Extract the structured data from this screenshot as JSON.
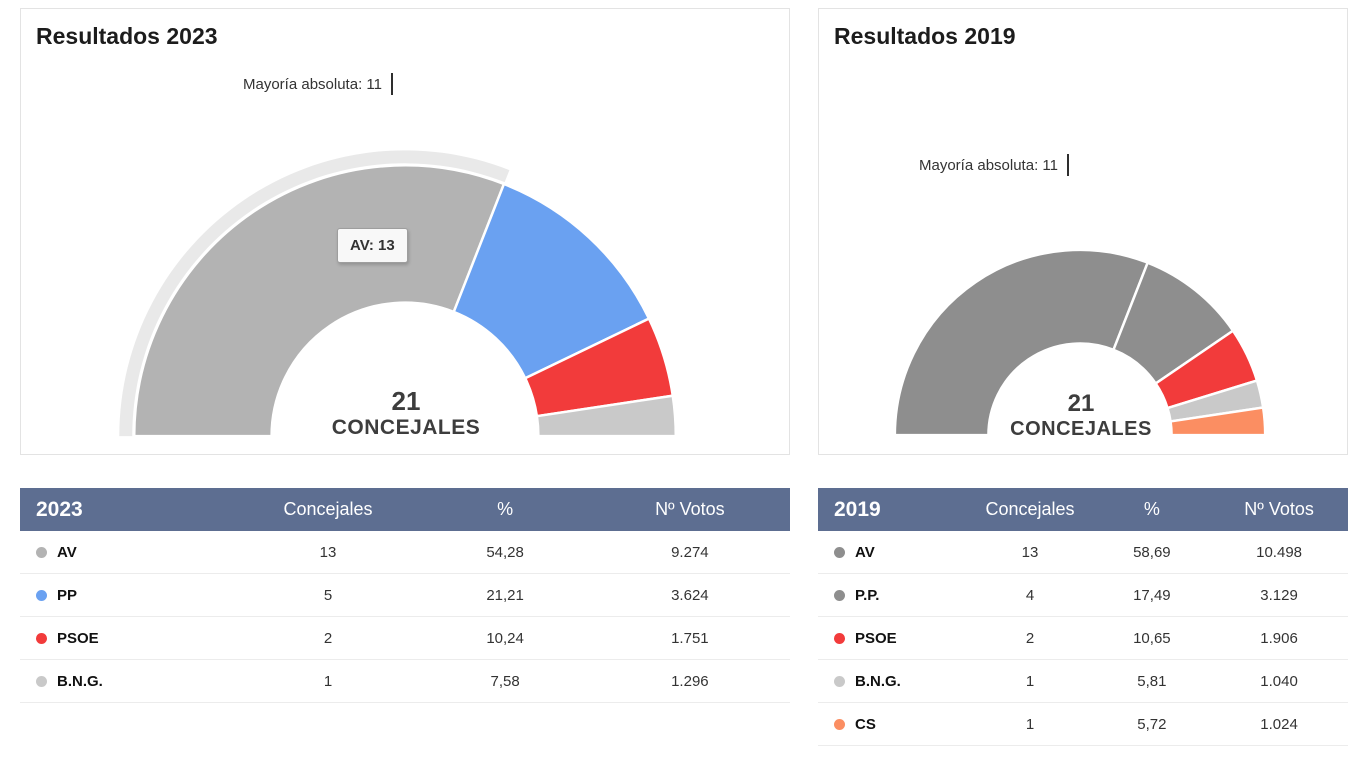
{
  "panels": [
    {
      "title": "Resultados 2023",
      "majority_label": "Mayoría absoluta: 11",
      "tooltip": "AV: 13",
      "center_value": "21",
      "center_label": "CONCEJALES",
      "table": {
        "year": "2023",
        "col_seats": "Concejales",
        "col_pct": "%",
        "col_votes": "Nº Votos",
        "rows": [
          {
            "party": "AV",
            "color": "#b3b3b3",
            "seats": "13",
            "pct": "54,28",
            "votes": "9.274"
          },
          {
            "party": "PP",
            "color": "#6aa1f1",
            "seats": "5",
            "pct": "21,21",
            "votes": "3.624"
          },
          {
            "party": "PSOE",
            "color": "#f23b3b",
            "seats": "2",
            "pct": "10,24",
            "votes": "1.751"
          },
          {
            "party": "B.N.G.",
            "color": "#c9c9c9",
            "seats": "1",
            "pct": "7,58",
            "votes": "1.296"
          }
        ]
      }
    },
    {
      "title": "Resultados 2019",
      "majority_label": "Mayoría absoluta: 11",
      "center_value": "21",
      "center_label": "CONCEJALES",
      "table": {
        "year": "2019",
        "col_seats": "Concejales",
        "col_pct": "%",
        "col_votes": "Nº Votos",
        "rows": [
          {
            "party": "AV",
            "color": "#8e8e8e",
            "seats": "13",
            "pct": "58,69",
            "votes": "10.498"
          },
          {
            "party": "P.P.",
            "color": "#8e8e8e",
            "seats": "4",
            "pct": "17,49",
            "votes": "3.129"
          },
          {
            "party": "PSOE",
            "color": "#f23b3b",
            "seats": "2",
            "pct": "10,65",
            "votes": "1.906"
          },
          {
            "party": "B.N.G.",
            "color": "#c9c9c9",
            "seats": "1",
            "pct": "5,81",
            "votes": "1.040"
          },
          {
            "party": "CS",
            "color": "#fb8e62",
            "seats": "1",
            "pct": "5,72",
            "votes": "1.024"
          }
        ]
      }
    }
  ],
  "chart_data": [
    {
      "type": "pie",
      "subtype": "half-donut-seats",
      "title": "Resultados 2023",
      "total_seats": 21,
      "majority_threshold": 11,
      "majority_label": "Mayoría absoluta: 11",
      "center_text": "21 CONCEJALES",
      "tooltip_visible": "AV: 13",
      "series": [
        {
          "name": "AV",
          "seats": 13,
          "pct": 54.28,
          "votes": 9274,
          "color": "#b3b3b3",
          "highlighted": true
        },
        {
          "name": "PP",
          "seats": 5,
          "pct": 21.21,
          "votes": 3624,
          "color": "#6aa1f1"
        },
        {
          "name": "PSOE",
          "seats": 2,
          "pct": 10.24,
          "votes": 1751,
          "color": "#f23b3b"
        },
        {
          "name": "B.N.G.",
          "seats": 1,
          "pct": 7.58,
          "votes": 1296,
          "color": "#c9c9c9"
        }
      ]
    },
    {
      "type": "pie",
      "subtype": "half-donut-seats",
      "title": "Resultados 2019",
      "total_seats": 21,
      "majority_threshold": 11,
      "majority_label": "Mayoría absoluta: 11",
      "center_text": "21 CONCEJALES",
      "series": [
        {
          "name": "AV",
          "seats": 13,
          "pct": 58.69,
          "votes": 10498,
          "color": "#8e8e8e"
        },
        {
          "name": "P.P.",
          "seats": 4,
          "pct": 17.49,
          "votes": 3129,
          "color": "#8e8e8e"
        },
        {
          "name": "PSOE",
          "seats": 2,
          "pct": 10.65,
          "votes": 1906,
          "color": "#f23b3b"
        },
        {
          "name": "B.N.G.",
          "seats": 1,
          "pct": 5.81,
          "votes": 1040,
          "color": "#c9c9c9"
        },
        {
          "name": "CS",
          "seats": 1,
          "pct": 5.72,
          "votes": 1024,
          "color": "#fb8e62"
        }
      ]
    }
  ],
  "colors": {
    "table_header_bg": "#5d6e91",
    "table_header_text": "#ffffff",
    "halo": "#e9e9e9",
    "panel_border": "#e3e3e3"
  }
}
